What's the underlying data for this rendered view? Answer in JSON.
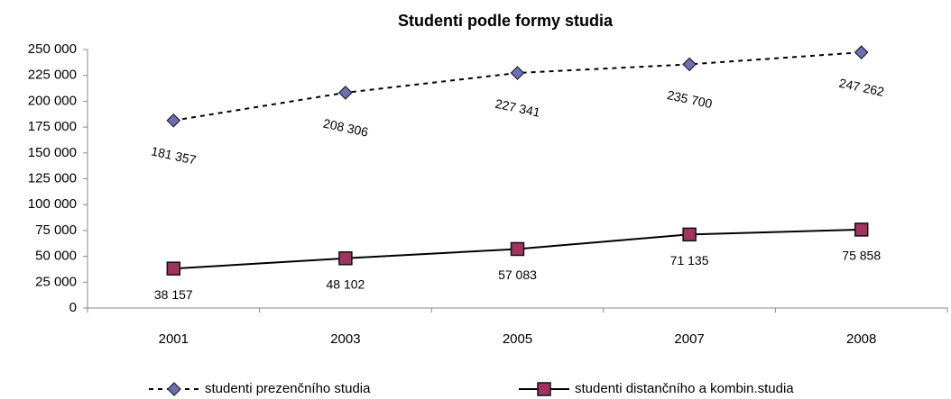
{
  "chart_data": {
    "type": "line",
    "title": "Studenti podle formy studia",
    "categories": [
      "2001",
      "2003",
      "2005",
      "2007",
      "2008"
    ],
    "series": [
      {
        "name": "studenti prezenčního studia",
        "color": "#6b6fb8",
        "style": "dashed",
        "marker": "diamond",
        "values": [
          181357,
          208306,
          227341,
          235700,
          247262
        ],
        "value_labels": [
          "181 357",
          "208 306",
          "227 341",
          "235 700",
          "247 262"
        ]
      },
      {
        "name": "studenti distančního a kombin.studia",
        "color": "#a3335e",
        "style": "solid",
        "marker": "square",
        "values": [
          38157,
          48102,
          57083,
          71135,
          75858
        ],
        "value_labels": [
          "38 157",
          "48 102",
          "57 083",
          "71 135",
          "75 858"
        ]
      }
    ],
    "ylim": [
      0,
      250000
    ],
    "yticks": [
      0,
      {
        "value": 25000,
        "label": "25 000"
      },
      {
        "value": 50000,
        "label": "50 000"
      },
      {
        "value": 75000,
        "label": "75 000"
      },
      {
        "value": 100000,
        "label": "100 000"
      },
      {
        "value": 125000,
        "label": "125 000"
      },
      {
        "value": 150000,
        "label": "150 000"
      },
      {
        "value": 175000,
        "label": "175 000"
      },
      {
        "value": 200000,
        "label": "200 000"
      },
      {
        "value": 225000,
        "label": "225 000"
      },
      {
        "value": 250000,
        "label": "250 000"
      }
    ],
    "grid": false,
    "legend": "bottom"
  }
}
